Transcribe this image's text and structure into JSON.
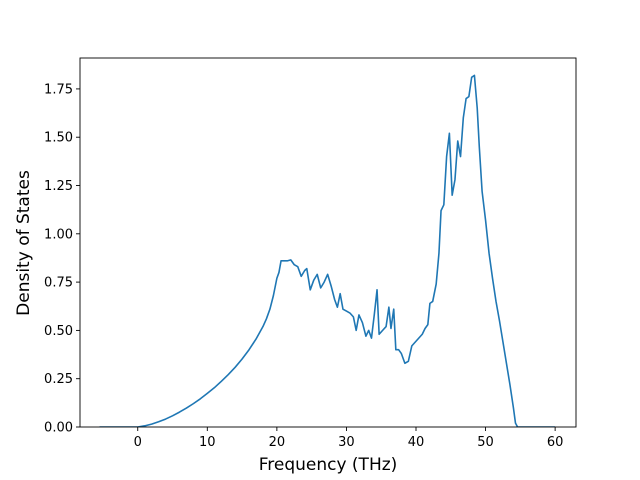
{
  "chart_data": {
    "type": "line",
    "title": "",
    "xlabel": "Frequency (THz)",
    "ylabel": "Density of States",
    "xlim": [
      -8.3,
      63.0
    ],
    "ylim": [
      0.0,
      1.91
    ],
    "xticks": [
      0,
      10,
      20,
      30,
      40,
      50,
      60
    ],
    "yticks": [
      0.0,
      0.25,
      0.5,
      0.75,
      1.0,
      1.25,
      1.5,
      1.75
    ],
    "grid": false,
    "line_color": "#1f77b4",
    "series": [
      {
        "x": [
          -5.5,
          -3,
          -1,
          0,
          1,
          2,
          3,
          4,
          5,
          6,
          7,
          8,
          9,
          10,
          11,
          12,
          13,
          14,
          15,
          16,
          17,
          18,
          18.5,
          19,
          19.5,
          20,
          20.3,
          20.6,
          21,
          21.5,
          22,
          22.5,
          23,
          23.5,
          24,
          24.3,
          24.8,
          25.3,
          25.8,
          26.3,
          26.8,
          27.3,
          27.8,
          28.3,
          28.7,
          29.1,
          29.5,
          30,
          30.5,
          31,
          31.4,
          31.8,
          32.3,
          32.8,
          33.2,
          33.6,
          34,
          34.4,
          34.7,
          35.2,
          35.7,
          36.1,
          36.4,
          36.8,
          37.1,
          37.5,
          37.9,
          38.4,
          38.9,
          39.4,
          39.9,
          40.4,
          40.9,
          41.3,
          41.7,
          42,
          42.4,
          42.9,
          43.3,
          43.6,
          44,
          44.4,
          44.8,
          45.2,
          45.6,
          46,
          46.4,
          46.8,
          47.2,
          47.6,
          48,
          48.4,
          48.8,
          49.1,
          49.5,
          50,
          50.5,
          51,
          51.5,
          52,
          52.5,
          53,
          53.5,
          54,
          54.3,
          54.6,
          55,
          56,
          58,
          60
        ],
        "y": [
          0.0,
          0.0,
          0.0,
          0.0,
          0.006,
          0.015,
          0.027,
          0.041,
          0.058,
          0.077,
          0.098,
          0.121,
          0.146,
          0.174,
          0.203,
          0.236,
          0.271,
          0.309,
          0.352,
          0.4,
          0.455,
          0.52,
          0.56,
          0.61,
          0.68,
          0.77,
          0.8,
          0.86,
          0.86,
          0.86,
          0.865,
          0.84,
          0.83,
          0.78,
          0.81,
          0.82,
          0.71,
          0.76,
          0.79,
          0.72,
          0.75,
          0.79,
          0.73,
          0.66,
          0.62,
          0.69,
          0.61,
          0.6,
          0.59,
          0.57,
          0.5,
          0.58,
          0.54,
          0.47,
          0.5,
          0.46,
          0.58,
          0.71,
          0.48,
          0.5,
          0.52,
          0.62,
          0.51,
          0.61,
          0.4,
          0.4,
          0.38,
          0.33,
          0.34,
          0.42,
          0.44,
          0.46,
          0.48,
          0.51,
          0.53,
          0.64,
          0.65,
          0.74,
          0.9,
          1.12,
          1.15,
          1.4,
          1.52,
          1.2,
          1.28,
          1.48,
          1.4,
          1.6,
          1.7,
          1.71,
          1.81,
          1.82,
          1.65,
          1.45,
          1.22,
          1.07,
          0.9,
          0.77,
          0.65,
          0.55,
          0.44,
          0.33,
          0.22,
          0.1,
          0.02,
          0.0,
          0.0,
          0.0,
          0.0,
          0.0
        ]
      }
    ]
  }
}
